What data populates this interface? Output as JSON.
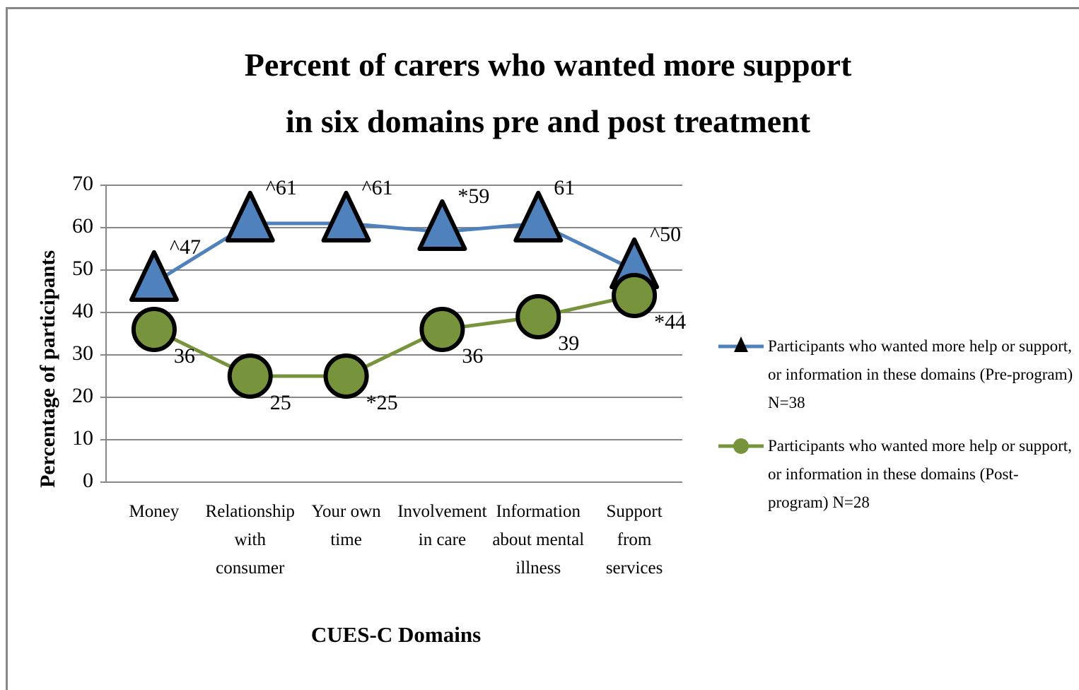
{
  "chart_data": {
    "type": "line",
    "title": "Percent of carers who wanted more support in six domains pre and post treatment",
    "x_label": "CUES-C Domains",
    "y_label": "Percentage of participants",
    "categories": [
      "Money",
      "Relationship with consumer",
      "Your own time",
      "Involvement in care",
      "Information about mental illness",
      "Support from services"
    ],
    "ylim": [
      0,
      70
    ],
    "yticks": [
      0,
      10,
      20,
      30,
      40,
      50,
      60,
      70
    ],
    "grid": true,
    "legend": "right",
    "series": [
      {
        "name": "Participants who wanted more help or support, or information in these domains (Pre-program) N=38",
        "color": "#4f81bd",
        "marker": "triangle",
        "values": [
          47,
          61,
          61,
          59,
          61,
          50
        ],
        "value_labels": [
          "^47",
          "^61",
          "^61",
          "*59",
          "61",
          "^50"
        ]
      },
      {
        "name": "Participants who wanted more help or support, or information in these domains (Post-program) N=28",
        "color": "#77933c",
        "marker": "circle",
        "values": [
          36,
          25,
          25,
          36,
          39,
          44
        ],
        "value_labels": [
          "36",
          "25",
          "*25",
          "36",
          "39",
          "*44"
        ]
      }
    ]
  }
}
